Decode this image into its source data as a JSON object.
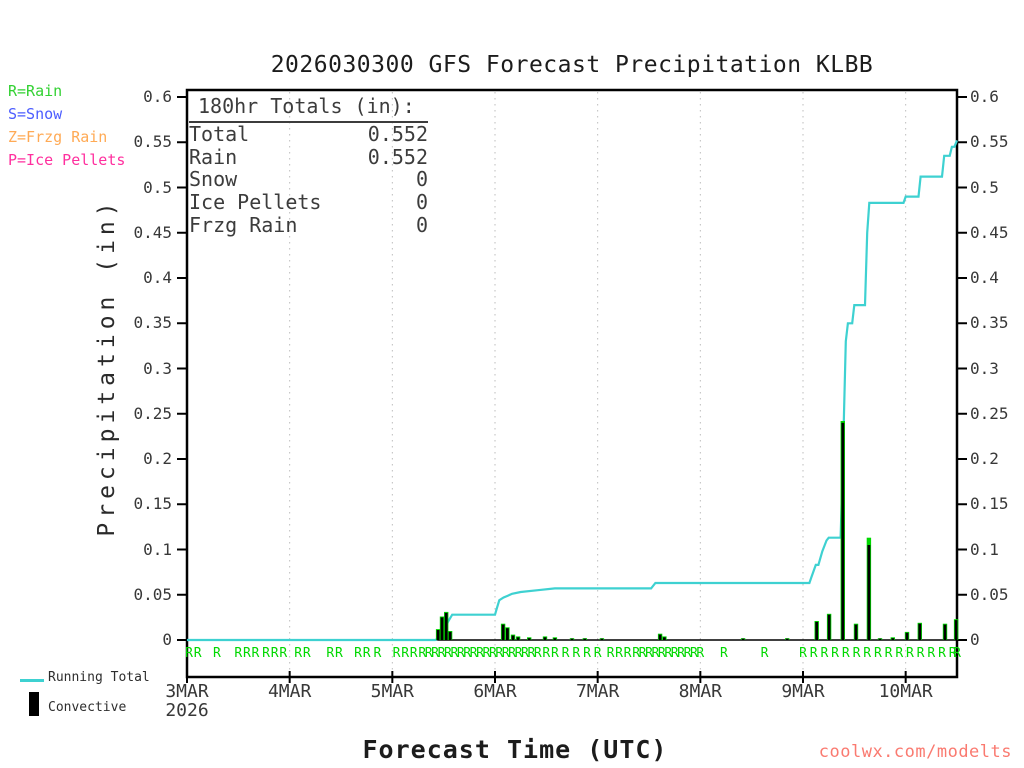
{
  "watermark": {
    "text": "coolwx.com/modelts",
    "color": "#fa7a70"
  },
  "chart_data": {
    "type": "line+bar",
    "title": "2026030300 GFS Forecast Precipitation KLBB",
    "xlabel": "Forecast Time (UTC)",
    "ylabel": "Precipitation (in)",
    "x_unit": "hours since 2026-03-03 00 UTC",
    "xlim_hours": [
      0,
      180
    ],
    "ylim": [
      0,
      0.6
    ],
    "grid": "vertical dotted lines at each day",
    "y_ticks": [
      {
        "v": 0.0,
        "label": "0"
      },
      {
        "v": 0.05,
        "label": "0.05"
      },
      {
        "v": 0.1,
        "label": "0.1"
      },
      {
        "v": 0.15,
        "label": "0.15"
      },
      {
        "v": 0.2,
        "label": "0.2"
      },
      {
        "v": 0.25,
        "label": "0.25"
      },
      {
        "v": 0.3,
        "label": "0.3"
      },
      {
        "v": 0.35,
        "label": "0.35"
      },
      {
        "v": 0.4,
        "label": "0.4"
      },
      {
        "v": 0.45,
        "label": "0.45"
      },
      {
        "v": 0.5,
        "label": "0.5"
      },
      {
        "v": 0.55,
        "label": "0.55"
      },
      {
        "v": 0.6,
        "label": "0.6"
      }
    ],
    "x_ticks": [
      {
        "hour": 0,
        "label": "3MAR",
        "sublabel": "2026"
      },
      {
        "hour": 24,
        "label": "4MAR"
      },
      {
        "hour": 48,
        "label": "5MAR"
      },
      {
        "hour": 72,
        "label": "6MAR"
      },
      {
        "hour": 96,
        "label": "7MAR"
      },
      {
        "hour": 120,
        "label": "8MAR"
      },
      {
        "hour": 144,
        "label": "9MAR"
      },
      {
        "hour": 168,
        "label": "10MAR"
      }
    ],
    "totals_box": {
      "title": "180hr Totals (in):",
      "rows": [
        {
          "label": "Total",
          "value": "0.552"
        },
        {
          "label": "Rain",
          "value": "0.552"
        },
        {
          "label": "Snow",
          "value": "0"
        },
        {
          "label": "Ice Pellets",
          "value": "0"
        },
        {
          "label": "Frzg Rain",
          "value": "0"
        }
      ]
    },
    "precip_type_legend": [
      {
        "label": "R=Rain",
        "color": "#32d132"
      },
      {
        "label": "S=Snow",
        "color": "#4b5cff"
      },
      {
        "label": "Z=Frzg Rain",
        "color": "#ffaa55"
      },
      {
        "label": "P=Ice Pellets",
        "color": "#ff2f9e"
      }
    ],
    "series_legend": {
      "running_total": "Running Total",
      "convective": "Convective"
    },
    "series": [
      {
        "name": "Running Total",
        "type": "line",
        "color": "#3ed1d1",
        "points": [
          [
            0,
            0
          ],
          [
            58,
            0
          ],
          [
            59,
            0.002
          ],
          [
            60,
            0.008
          ],
          [
            61,
            0.02
          ],
          [
            62,
            0.028
          ],
          [
            72,
            0.028
          ],
          [
            72.5,
            0.036
          ],
          [
            73,
            0.044
          ],
          [
            74,
            0.047
          ],
          [
            75,
            0.049
          ],
          [
            76,
            0.051
          ],
          [
            78,
            0.053
          ],
          [
            82,
            0.055
          ],
          [
            86,
            0.057
          ],
          [
            108.5,
            0.057
          ],
          [
            109.5,
            0.063
          ],
          [
            145.5,
            0.063
          ],
          [
            146,
            0.07
          ],
          [
            147,
            0.083
          ],
          [
            147.6,
            0.083
          ],
          [
            148.5,
            0.098
          ],
          [
            149.5,
            0.11
          ],
          [
            150,
            0.113
          ],
          [
            152.8,
            0.113
          ],
          [
            153.2,
            0.18
          ],
          [
            154,
            0.33
          ],
          [
            154.5,
            0.35
          ],
          [
            155.5,
            0.35
          ],
          [
            156,
            0.37
          ],
          [
            158.5,
            0.37
          ],
          [
            159,
            0.45
          ],
          [
            159.5,
            0.483
          ],
          [
            167.5,
            0.483
          ],
          [
            168,
            0.49
          ],
          [
            171,
            0.49
          ],
          [
            171.5,
            0.512
          ],
          [
            176.5,
            0.512
          ],
          [
            177,
            0.535
          ],
          [
            178.3,
            0.535
          ],
          [
            178.8,
            0.545
          ],
          [
            179.4,
            0.545
          ],
          [
            180,
            0.552
          ]
        ],
        "final_value_in": 0.552
      },
      {
        "name": "Convective",
        "type": "bar",
        "fill": "#000000",
        "edge": "#00d800",
        "bars_hour_total_convective": [
          [
            58.7,
            0.012,
            0.011
          ],
          [
            59.6,
            0.026,
            0.025
          ],
          [
            60.6,
            0.031,
            0.03
          ],
          [
            61.5,
            0.01,
            0.009
          ],
          [
            73.9,
            0.018,
            0.017
          ],
          [
            74.9,
            0.014,
            0.013
          ],
          [
            76.2,
            0.006,
            0.005
          ],
          [
            77.4,
            0.004,
            0.003
          ],
          [
            80,
            0.003,
            0.002
          ],
          [
            83.7,
            0.004,
            0.003
          ],
          [
            86,
            0.003,
            0.002
          ],
          [
            90,
            0.002,
            0.0015
          ],
          [
            93,
            0.002,
            0.0015
          ],
          [
            97,
            0.002,
            0.0015
          ],
          [
            110.6,
            0.007,
            0.006
          ],
          [
            111.6,
            0.004,
            0.003
          ],
          [
            130,
            0.002,
            0.0015
          ],
          [
            140.3,
            0.002,
            0.0015
          ],
          [
            147.2,
            0.021,
            0.02
          ],
          [
            150.1,
            0.029,
            0.028
          ],
          [
            153.3,
            0.242,
            0.24
          ],
          [
            156.4,
            0.018,
            0.017
          ],
          [
            159.4,
            0.113,
            0.105
          ],
          [
            162,
            0.002,
            0.0015
          ],
          [
            165,
            0.003,
            0.002
          ],
          [
            168.3,
            0.009,
            0.008
          ],
          [
            171.3,
            0.019,
            0.018
          ],
          [
            177.2,
            0.018,
            0.017
          ],
          [
            179.8,
            0.023,
            0.022
          ]
        ]
      },
      {
        "name": "Precip type markers",
        "type": "text-markers",
        "letter": "R",
        "color": "#00d800",
        "hours": [
          0.5,
          2.5,
          7,
          12,
          14,
          16,
          18.5,
          20.5,
          22.5,
          26,
          28,
          33.5,
          35.5,
          40,
          42,
          44.5,
          49,
          51,
          53,
          55,
          56.5,
          58,
          59.5,
          61,
          62.5,
          64,
          65.5,
          67,
          68.5,
          70,
          71.5,
          73,
          74.5,
          76,
          77.5,
          79,
          80.5,
          82,
          84,
          86,
          88.5,
          91,
          93.5,
          96,
          99,
          101,
          103,
          105,
          106.5,
          108,
          109.5,
          111,
          112.5,
          114,
          115.5,
          117,
          118.5,
          120,
          125.5,
          135,
          144,
          146.5,
          149,
          151.5,
          154,
          156.5,
          159,
          161.5,
          164,
          166.5,
          169,
          171.5,
          174,
          176.5,
          179,
          180
        ]
      }
    ]
  }
}
